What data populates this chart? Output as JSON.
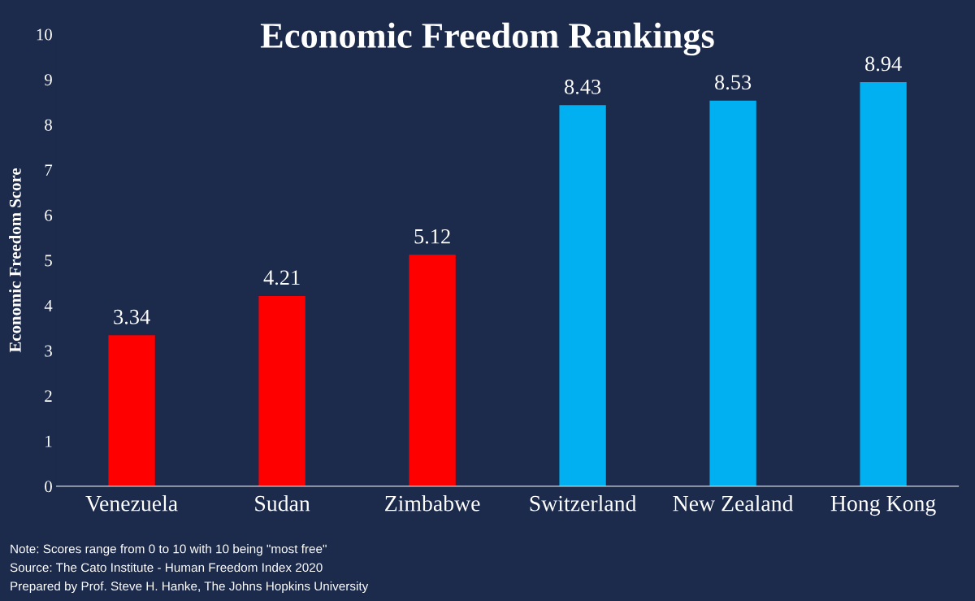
{
  "chart_data": {
    "type": "bar",
    "title": "Economic Freedom Rankings",
    "ylabel": "Economic Freedom Score",
    "categories": [
      "Venezuela",
      "Sudan",
      "Zimbabwe",
      "Switzerland",
      "New Zealand",
      "Hong Kong"
    ],
    "values": [
      3.34,
      4.21,
      5.12,
      8.43,
      8.53,
      8.94
    ],
    "colors": [
      "#ff0000",
      "#ff0000",
      "#ff0000",
      "#00b0f0",
      "#00b0f0",
      "#00b0f0"
    ],
    "ylim": [
      0,
      10
    ],
    "yticks": [
      0,
      1,
      2,
      3,
      4,
      5,
      6,
      7,
      8,
      9,
      10
    ],
    "grid": false,
    "legend": false,
    "data_labels": true,
    "annotations": [
      "Note: Scores range from 0 to 10 with 10 being \"most free\"",
      "Source: The Cato Institute - Human Freedom Index 2020",
      "Prepared by Prof. Steve H. Hanke, The Johns Hopkins University"
    ]
  }
}
